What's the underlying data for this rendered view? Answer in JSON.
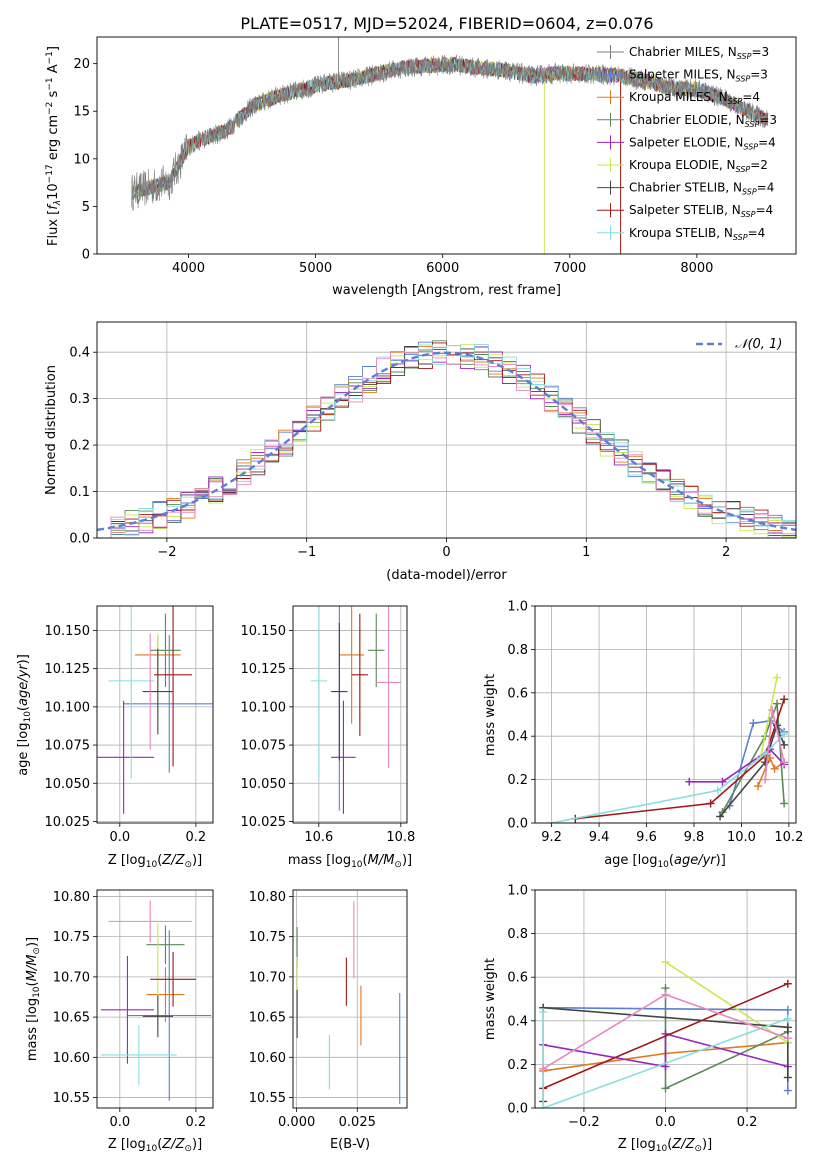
{
  "figure_title": "PLATE=0517, MJD=52024, FIBERID=0604, z=0.076",
  "model_colors": [
    "#7f7f7f",
    "#5b7fd6",
    "#e0781e",
    "#5a8a5a",
    "#9a24c0",
    "#c8e84e",
    "#444444",
    "#a01818",
    "#86dede",
    "#e688c0"
  ],
  "chart_data": [
    {
      "id": "spectrum",
      "type": "line",
      "title": "PLATE=0517, MJD=52024, FIBERID=0604, z=0.076",
      "xlabel": "wavelength [Angstrom, rest frame]",
      "ylabel": "Flux [f_λ10^-17 erg cm^-2 s^-1 A^-1]",
      "xlim": [
        3280,
        8780
      ],
      "ylim": [
        0,
        22.8
      ],
      "x_ticks": [
        "4000",
        "5000",
        "6000",
        "7000",
        "8000"
      ],
      "y_ticks": [
        "0",
        "5",
        "10",
        "15",
        "20"
      ],
      "continuum": {
        "x": [
          3550,
          3700,
          3850,
          4000,
          4100,
          4300,
          4500,
          4700,
          4900,
          5100,
          5300,
          5500,
          5700,
          5900,
          6100,
          6300,
          6500,
          6700,
          6900,
          7100,
          7300,
          7400,
          7600,
          7800,
          8000,
          8200,
          8400,
          8550
        ],
        "y": [
          6.5,
          7.0,
          7.6,
          11.3,
          12.0,
          13.0,
          15.5,
          16.6,
          17.3,
          18.0,
          18.3,
          19.0,
          19.6,
          19.8,
          19.9,
          19.5,
          19.3,
          18.7,
          19.0,
          18.9,
          18.8,
          18.7,
          18.2,
          17.4,
          17.3,
          16.4,
          15.0,
          14.1
        ]
      },
      "legend": {
        "position": "upper right",
        "entries": [
          {
            "label": "Chabrier MILES, N_SSP=3",
            "color": "#7f7f7f"
          },
          {
            "label": "Salpeter MILES, N_SSP=3",
            "color": "#5b7fd6"
          },
          {
            "label": "Kroupa MILES, N_SSP=4",
            "color": "#e0781e"
          },
          {
            "label": "Chabrier ELODIE, N_SSP=3",
            "color": "#5a8a5a"
          },
          {
            "label": "Salpeter ELODIE, N_SSP=4",
            "color": "#9a24c0"
          },
          {
            "label": "Kroupa ELODIE, N_SSP=2",
            "color": "#c8e84e"
          },
          {
            "label": "Chabrier STELIB, N_SSP=4",
            "color": "#444444"
          },
          {
            "label": "Salpeter STELIB, N_SSP=4",
            "color": "#a01818"
          },
          {
            "label": "Kroupa STELIB, N_SSP=4",
            "color": "#86dede"
          }
        ]
      }
    },
    {
      "id": "residuals",
      "type": "line",
      "xlabel": "(data-model)/error",
      "ylabel": "Normed distribution",
      "xlim": [
        -2.5,
        2.5
      ],
      "ylim": [
        0,
        0.465
      ],
      "x_ticks": [
        "−2",
        "−1",
        "0",
        "1",
        "2"
      ],
      "y_ticks": [
        "0.0",
        "0.1",
        "0.2",
        "0.3",
        "0.4"
      ],
      "bins": {
        "start": -2.5,
        "width": 0.1,
        "count": 50
      },
      "reference": {
        "label": "𝒩(0, 1)",
        "color": "#5b7fd6",
        "style": "dashed",
        "mu": 0,
        "sigma": 1
      },
      "grid": true
    },
    {
      "id": "age-vs-Z",
      "type": "scatter",
      "xlabel": "Z [log10(Z/Z⊙)]",
      "ylabel": "age [log10(age/yr)]",
      "xlim": [
        -0.06,
        0.245
      ],
      "ylim": [
        10.024,
        10.166
      ],
      "x_ticks": [
        "0.0",
        "0.2"
      ],
      "y_ticks": [
        "10.025",
        "10.050",
        "10.075",
        "10.100",
        "10.125",
        "10.150"
      ],
      "errorbars": [
        {
          "x": 0.13,
          "y": 10.102,
          "xerr": 0.12,
          "yerr": 0.045,
          "color": "#5b7fd6"
        },
        {
          "x": 0.1,
          "y": 10.134,
          "xerr": 0.06,
          "yerr": 0.012,
          "color": "#e0781e"
        },
        {
          "x": 0.12,
          "y": 10.137,
          "xerr": 0.04,
          "yerr": 0.024,
          "color": "#5a8a5a"
        },
        {
          "x": 0.01,
          "y": 10.067,
          "xerr": 0.08,
          "yerr": 0.037,
          "color": "#9a24c0"
        },
        {
          "x": 0.1,
          "y": 10.122,
          "xerr": 0.0,
          "yerr": 0.026,
          "color": "#c8e84e"
        },
        {
          "x": 0.1,
          "y": 10.11,
          "xerr": 0.04,
          "yerr": 0.028,
          "color": "#444444"
        },
        {
          "x": 0.14,
          "y": 10.121,
          "xerr": 0.05,
          "yerr": 0.06,
          "color": "#a01818"
        },
        {
          "x": 0.03,
          "y": 10.117,
          "xerr": 0.06,
          "yerr": 0.064,
          "color": "#86dede"
        },
        {
          "x": 0.08,
          "y": 10.11,
          "xerr": 0.0,
          "yerr": 0.038,
          "color": "#e688c0"
        }
      ]
    },
    {
      "id": "age-vs-mass",
      "type": "scatter",
      "xlabel": "mass [log10(M/M⊙)]",
      "ylabel": "",
      "xlim": [
        10.537,
        10.815
      ],
      "ylim": [
        10.024,
        10.166
      ],
      "x_ticks": [
        "10.6",
        "10.8"
      ],
      "y_ticks": [
        "10.025",
        "10.050",
        "10.075",
        "10.100",
        "10.125",
        "10.150"
      ],
      "errorbars": [
        {
          "x": 10.65,
          "y": 10.102,
          "xerr": 0.0,
          "yerr": 0.07,
          "color": "#5b7fd6"
        },
        {
          "x": 10.68,
          "y": 10.134,
          "xerr": 0.03,
          "yerr": 0.045,
          "color": "#e0781e"
        },
        {
          "x": 10.74,
          "y": 10.137,
          "xerr": 0.02,
          "yerr": 0.024,
          "color": "#5a8a5a"
        },
        {
          "x": 10.66,
          "y": 10.067,
          "xerr": 0.03,
          "yerr": 0.037,
          "color": "#9a24c0"
        },
        {
          "x": 10.7,
          "y": 10.122,
          "xerr": 0.0,
          "yerr": 0.03,
          "color": "#c8e84e"
        },
        {
          "x": 10.65,
          "y": 10.11,
          "xerr": 0.02,
          "yerr": 0.045,
          "color": "#444444"
        },
        {
          "x": 10.7,
          "y": 10.121,
          "xerr": 0.02,
          "yerr": 0.04,
          "color": "#a01818"
        },
        {
          "x": 10.6,
          "y": 10.117,
          "xerr": 0.02,
          "yerr": 0.064,
          "color": "#86dede"
        },
        {
          "x": 10.77,
          "y": 10.116,
          "xerr": 0.03,
          "yerr": 0.056,
          "color": "#e688c0"
        }
      ]
    },
    {
      "id": "mass-weight-vs-age",
      "type": "line",
      "xlabel": "age [log10(age/yr)]",
      "ylabel": "mass weight",
      "xlim": [
        9.13,
        10.23
      ],
      "ylim": [
        0,
        1
      ],
      "x_ticks": [
        "9.2",
        "9.4",
        "9.6",
        "9.8",
        "10.0",
        "10.2"
      ],
      "y_ticks": [
        "0.0",
        "0.2",
        "0.4",
        "0.6",
        "0.8",
        "1.0"
      ],
      "grid": true,
      "series": [
        {
          "color": "#5b7fd6",
          "x": [
            9.95,
            10.05,
            10.12,
            10.18
          ],
          "y": [
            0.08,
            0.46,
            0.47,
            0.42
          ]
        },
        {
          "color": "#e0781e",
          "x": [
            10.07,
            10.12,
            10.14,
            10.18
          ],
          "y": [
            0.17,
            0.3,
            0.25,
            0.28
          ]
        },
        {
          "color": "#5a8a5a",
          "x": [
            9.92,
            10.1,
            10.15,
            10.18
          ],
          "y": [
            0.05,
            0.4,
            0.55,
            0.09
          ]
        },
        {
          "color": "#9a24c0",
          "x": [
            9.78,
            9.92,
            10.12,
            10.18
          ],
          "y": [
            0.19,
            0.19,
            0.34,
            0.27
          ]
        },
        {
          "color": "#c8e84e",
          "x": [
            10.08,
            10.15
          ],
          "y": [
            0.3,
            0.67
          ]
        },
        {
          "color": "#444444",
          "x": [
            9.91,
            10.1,
            10.15,
            10.18
          ],
          "y": [
            0.03,
            0.28,
            0.45,
            0.36
          ]
        },
        {
          "color": "#a01818",
          "x": [
            9.3,
            9.87,
            10.1,
            10.18
          ],
          "y": [
            0.02,
            0.09,
            0.31,
            0.57
          ]
        },
        {
          "color": "#86dede",
          "x": [
            9.2,
            9.9,
            10.1,
            10.18
          ],
          "y": [
            0.0,
            0.15,
            0.32,
            0.41
          ]
        },
        {
          "color": "#e688c0",
          "x": [
            10.1,
            10.13,
            10.18
          ],
          "y": [
            0.2,
            0.52,
            0.28
          ]
        }
      ]
    },
    {
      "id": "mass-vs-Z",
      "type": "scatter",
      "xlabel": "Z [log10(Z/Z⊙)]",
      "ylabel": "mass [log10(M/M⊙)]",
      "xlim": [
        -0.06,
        0.245
      ],
      "ylim": [
        10.537,
        10.808
      ],
      "x_ticks": [
        "0.0",
        "0.2"
      ],
      "y_ticks": [
        "10.55",
        "10.60",
        "10.65",
        "10.70",
        "10.75",
        "10.80"
      ],
      "errorbars": [
        {
          "x": 0.13,
          "y": 10.652,
          "xerr": 0.11,
          "yerr": 0.106,
          "color": "#5b7fd6"
        },
        {
          "x": 0.12,
          "y": 10.678,
          "xerr": 0.05,
          "yerr": 0.034,
          "color": "#e0781e"
        },
        {
          "x": 0.12,
          "y": 10.74,
          "xerr": 0.05,
          "yerr": 0.024,
          "color": "#5a8a5a"
        },
        {
          "x": 0.02,
          "y": 10.659,
          "xerr": 0.07,
          "yerr": 0.067,
          "color": "#9a24c0"
        },
        {
          "x": 0.1,
          "y": 10.719,
          "xerr": 0.0,
          "yerr": 0.048,
          "color": "#c8e84e"
        },
        {
          "x": 0.1,
          "y": 10.651,
          "xerr": 0.04,
          "yerr": 0.026,
          "color": "#444444"
        },
        {
          "x": 0.14,
          "y": 10.697,
          "xerr": 0.06,
          "yerr": 0.034,
          "color": "#a01818"
        },
        {
          "x": 0.05,
          "y": 10.603,
          "xerr": 0.1,
          "yerr": 0.037,
          "color": "#86dede"
        },
        {
          "x": 0.08,
          "y": 10.769,
          "xerr": 0.11,
          "yerr": 0.026,
          "color": "#e688c0"
        }
      ]
    },
    {
      "id": "mass-vs-EBV",
      "type": "scatter",
      "xlabel": "E(B-V)",
      "ylabel": "",
      "xlim": [
        -0.0015,
        0.0455
      ],
      "ylim": [
        10.537,
        10.808
      ],
      "x_ticks": [
        "0.000",
        "0.025"
      ],
      "y_ticks": [
        "10.55",
        "10.60",
        "10.65",
        "10.70",
        "10.75",
        "10.80"
      ],
      "errorbars": [
        {
          "x": 0.0425,
          "y": 10.611,
          "xerr": 0,
          "yerr": 0.069,
          "color": "#5b7fd6"
        },
        {
          "x": 0.0265,
          "y": 10.652,
          "xerr": 0,
          "yerr": 0.037,
          "color": "#e0781e"
        },
        {
          "x": 0.0002,
          "y": 10.737,
          "xerr": 0,
          "yerr": 0.025,
          "color": "#5a8a5a"
        },
        {
          "x": 0.0002,
          "y": 10.703,
          "xerr": 0,
          "yerr": 0.022,
          "color": "#c8e84e"
        },
        {
          "x": 0.0002,
          "y": 10.654,
          "xerr": 0,
          "yerr": 0.03,
          "color": "#444444"
        },
        {
          "x": 0.0205,
          "y": 10.694,
          "xerr": 0,
          "yerr": 0.03,
          "color": "#a01818"
        },
        {
          "x": 0.0135,
          "y": 10.594,
          "xerr": 0,
          "yerr": 0.034,
          "color": "#86dede"
        },
        {
          "x": 0.0236,
          "y": 10.746,
          "xerr": 0,
          "yerr": 0.048,
          "color": "#e688c0"
        }
      ]
    },
    {
      "id": "mass-weight-vs-Z",
      "type": "line",
      "xlabel": "Z [log10(Z/Z⊙)]",
      "ylabel": "mass weight",
      "xlim": [
        -0.32,
        0.32
      ],
      "ylim": [
        0,
        1
      ],
      "x_ticks": [
        "−0.2",
        "0.0",
        "0.2"
      ],
      "y_ticks": [
        "0.0",
        "0.2",
        "0.4",
        "0.6",
        "0.8",
        "1.0"
      ],
      "grid": true,
      "series": [
        {
          "color": "#5b7fd6",
          "x": [
            -0.3,
            0.3,
            0.3
          ],
          "y": [
            0.46,
            0.45,
            0.08
          ]
        },
        {
          "color": "#e0781e",
          "x": [
            -0.3,
            0.0,
            0.3
          ],
          "y": [
            0.17,
            0.25,
            0.3
          ]
        },
        {
          "color": "#5a8a5a",
          "x": [
            0.0,
            0.0,
            0.3
          ],
          "y": [
            0.55,
            0.09,
            0.35
          ]
        },
        {
          "color": "#9a24c0",
          "x": [
            -0.3,
            0.0,
            0.0,
            0.3
          ],
          "y": [
            0.29,
            0.19,
            0.34,
            0.19
          ]
        },
        {
          "color": "#c8e84e",
          "x": [
            0.0,
            0.3
          ],
          "y": [
            0.67,
            0.3
          ]
        },
        {
          "color": "#444444",
          "x": [
            -0.3,
            -0.3,
            0.3,
            0.3
          ],
          "y": [
            0.03,
            0.46,
            0.37,
            0.14
          ]
        },
        {
          "color": "#a01818",
          "x": [
            -0.3,
            0.3
          ],
          "y": [
            0.09,
            0.57
          ]
        },
        {
          "color": "#86dede",
          "x": [
            -0.3,
            -0.3,
            0.3
          ],
          "y": [
            0.44,
            0.0,
            0.41
          ]
        },
        {
          "color": "#e688c0",
          "x": [
            -0.3,
            0.0,
            0.3
          ],
          "y": [
            0.18,
            0.52,
            0.32
          ]
        }
      ]
    }
  ]
}
